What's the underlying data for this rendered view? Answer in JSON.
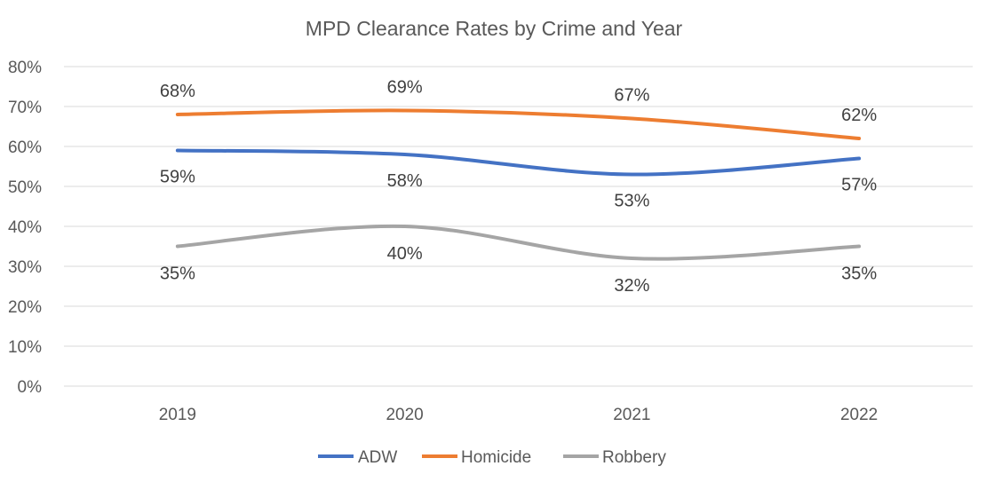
{
  "chart_data": {
    "type": "line",
    "title": "MPD Clearance Rates by Crime and Year",
    "xlabel": "",
    "ylabel": "",
    "categories": [
      "2019",
      "2020",
      "2021",
      "2022"
    ],
    "ylim": [
      0,
      80
    ],
    "yticks": [
      "0%",
      "10%",
      "20%",
      "30%",
      "40%",
      "50%",
      "60%",
      "70%",
      "80%"
    ],
    "grid": true,
    "legend_position": "bottom",
    "series": [
      {
        "name": "ADW",
        "color": "#4472c4",
        "values": [
          59,
          58,
          53,
          57
        ],
        "labels": [
          "59%",
          "58%",
          "53%",
          "57%"
        ]
      },
      {
        "name": "Homicide",
        "color": "#ed7d31",
        "values": [
          68,
          69,
          67,
          62
        ],
        "labels": [
          "68%",
          "69%",
          "67%",
          "62%"
        ]
      },
      {
        "name": "Robbery",
        "color": "#a5a5a5",
        "values": [
          35,
          40,
          32,
          35
        ],
        "labels": [
          "35%",
          "40%",
          "32%",
          "35%"
        ]
      }
    ]
  }
}
